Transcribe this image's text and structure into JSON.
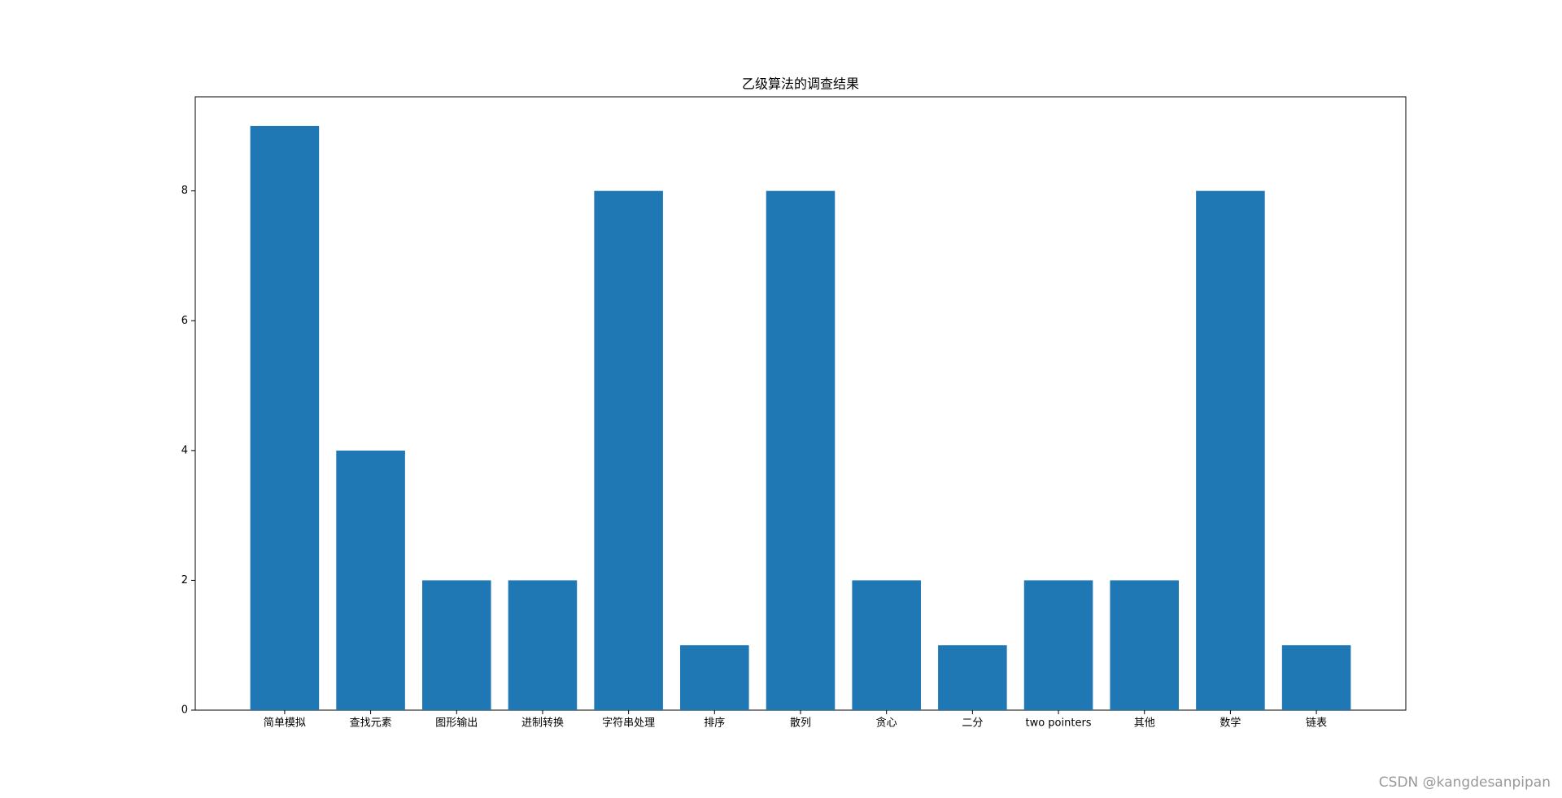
{
  "chart_data": {
    "type": "bar",
    "title": "乙级算法的调查结果",
    "categories": [
      "简单模拟",
      "查找元素",
      "图形输出",
      "进制转换",
      "字符串处理",
      "排序",
      "散列",
      "贪心",
      "二分",
      "two pointers",
      "其他",
      "数学",
      "链表"
    ],
    "values": [
      9,
      4,
      2,
      2,
      8,
      1,
      8,
      2,
      1,
      2,
      2,
      8,
      1
    ],
    "color": "#1f77b4",
    "ylim": [
      0,
      9.45
    ],
    "yticks": [
      0,
      2,
      4,
      6,
      8
    ],
    "grid": false
  },
  "watermark": "CSDN @kangdesanpipan"
}
